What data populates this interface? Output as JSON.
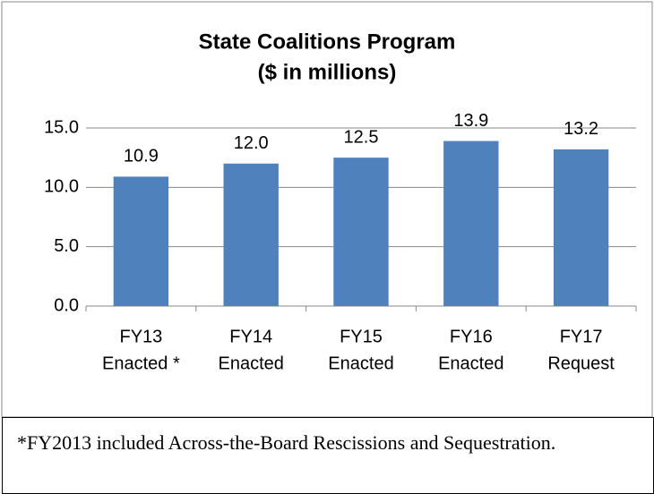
{
  "chart_data": {
    "type": "bar",
    "title": "State Coalitions Program",
    "subtitle": "($ in millions)",
    "categories": [
      [
        "FY13",
        "Enacted *"
      ],
      [
        "FY14",
        "Enacted"
      ],
      [
        "FY15",
        "Enacted"
      ],
      [
        "FY16",
        "Enacted"
      ],
      [
        "FY17",
        "Request"
      ]
    ],
    "values": [
      10.9,
      12.0,
      12.5,
      13.9,
      13.2
    ],
    "value_labels": [
      "10.9",
      "12.0",
      "12.5",
      "13.9",
      "13.2"
    ],
    "color": "#4f81bd",
    "ylim": [
      0,
      15
    ],
    "yticks": [
      {
        "value": 0,
        "label": "0.0"
      },
      {
        "value": 5,
        "label": "5.0"
      },
      {
        "value": 10,
        "label": "10.0"
      },
      {
        "value": 15,
        "label": "15.0"
      }
    ],
    "grid": true
  },
  "footnote": "*FY2013 included Across-the-Board Rescissions and Sequestration."
}
